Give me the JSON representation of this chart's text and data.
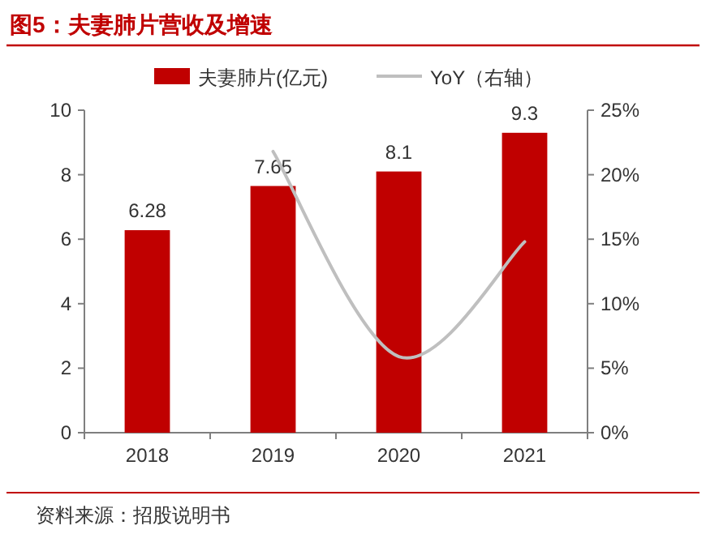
{
  "chart_data": {
    "type": "bar",
    "title": "图5：夫妻肺片营收及增速",
    "categories": [
      "2018",
      "2019",
      "2020",
      "2021"
    ],
    "series": [
      {
        "name": "夫妻肺片(亿元)",
        "color": "#c00000",
        "values": [
          6.28,
          7.65,
          8.1,
          9.3
        ],
        "value_labels": [
          "6.28",
          "7.65",
          "8.1",
          "9.3"
        ]
      },
      {
        "name": "YoY（右轴）",
        "type": "line",
        "axis": "y2",
        "color": "#bfbfbf",
        "values": [
          null,
          21.8,
          5.9,
          14.8
        ]
      }
    ],
    "ylim": [
      0,
      10
    ],
    "yticks": [
      0,
      2,
      4,
      6,
      8,
      10
    ],
    "y2lim": [
      0,
      25
    ],
    "y2ticks": [
      {
        "value": 0,
        "label": "0%"
      },
      {
        "value": 5,
        "label": "5%"
      },
      {
        "value": 10,
        "label": "10%"
      },
      {
        "value": 15,
        "label": "15%"
      },
      {
        "value": 20,
        "label": "20%"
      },
      {
        "value": 25,
        "label": "25%"
      }
    ],
    "legend": "top",
    "annotations": [
      "资料来源：招股说明书"
    ]
  }
}
